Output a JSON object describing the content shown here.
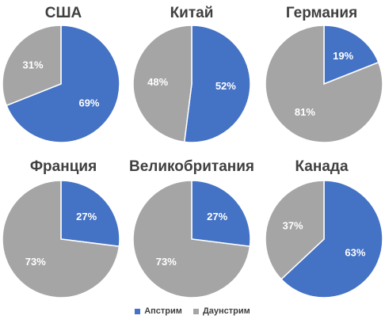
{
  "colors": {
    "upstream": "#4472c4",
    "downstream": "#a5a5a5"
  },
  "legend": [
    {
      "label": "Апстрим",
      "color": "#4472c4"
    },
    {
      "label": "Даунстрим",
      "color": "#a5a5a5"
    }
  ],
  "chart_data": [
    {
      "type": "pie",
      "title": "США",
      "categories": [
        "Апстрим",
        "Даунстрим"
      ],
      "values": [
        69,
        31
      ],
      "labels": [
        "69%",
        "31%"
      ]
    },
    {
      "type": "pie",
      "title": "Китай",
      "categories": [
        "Апстрим",
        "Даунстрим"
      ],
      "values": [
        52,
        48
      ],
      "labels": [
        "52%",
        "48%"
      ]
    },
    {
      "type": "pie",
      "title": "Германия",
      "categories": [
        "Апстрим",
        "Даунстрим"
      ],
      "values": [
        19,
        81
      ],
      "labels": [
        "19%",
        "81%"
      ]
    },
    {
      "type": "pie",
      "title": "Франция",
      "categories": [
        "Апстрим",
        "Даунстрим"
      ],
      "values": [
        27,
        73
      ],
      "labels": [
        "27%",
        "73%"
      ]
    },
    {
      "type": "pie",
      "title": "Великобритания",
      "categories": [
        "Апстрим",
        "Даунстрим"
      ],
      "values": [
        27,
        73
      ],
      "labels": [
        "27%",
        "73%"
      ]
    },
    {
      "type": "pie",
      "title": "Канада",
      "categories": [
        "Апстрим",
        "Даунстрим"
      ],
      "values": [
        63,
        37
      ],
      "labels": [
        "63%",
        "37%"
      ]
    }
  ]
}
